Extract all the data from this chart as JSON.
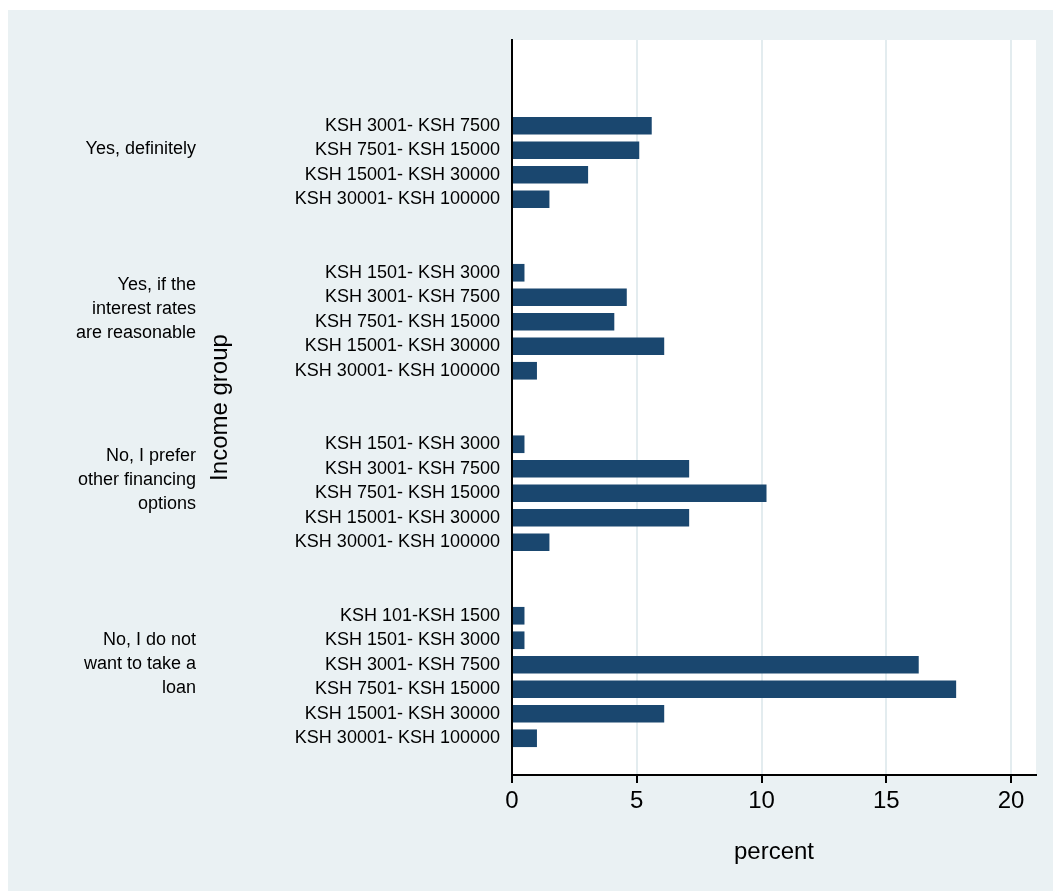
{
  "chart_data": {
    "type": "bar",
    "orientation": "horizontal",
    "xlabel": "percent",
    "ylabel": "Income group",
    "categories": [
      null,
      null,
      null,
      "KSH 3001- KSH 7500",
      "KSH 7501- KSH 15000",
      "KSH 15001- KSH 30000",
      "KSH 30001- KSH 100000",
      null,
      null,
      "KSH 1501- KSH 3000",
      "KSH 3001- KSH 7500",
      "KSH 7501- KSH 15000",
      "KSH 15001- KSH 30000",
      "KSH 30001- KSH 100000",
      null,
      null,
      "KSH 1501- KSH 3000",
      "KSH 3001- KSH 7500",
      "KSH 7501- KSH 15000",
      "KSH 15001- KSH 30000",
      "KSH 30001- KSH 100000",
      null,
      null,
      "KSH 101-KSH 1500",
      "KSH 1501- KSH 3000",
      "KSH 3001- KSH 7500",
      "KSH 7501- KSH 15000",
      "KSH 15001- KSH 30000",
      "KSH 30001- KSH 100000",
      null
    ],
    "values": [
      null,
      null,
      null,
      5.6,
      5.1,
      3.05,
      1.5,
      null,
      null,
      0.5,
      4.6,
      4.1,
      6.1,
      1.0,
      null,
      null,
      0.5,
      7.1,
      10.2,
      7.1,
      1.5,
      null,
      null,
      0.5,
      0.5,
      16.3,
      17.8,
      6.1,
      1.0,
      null
    ],
    "color": "#1a476f",
    "xlim": [
      0,
      21
    ],
    "xticks": [
      0,
      5,
      10,
      15,
      20
    ],
    "grid": "x",
    "annotations": [
      "Yes, definitely",
      "Yes, if the\ninterest rates\nare reasonable",
      "No, I prefer\nother financing\noptions",
      "No, I do not\nwant to take a\nloan"
    ]
  }
}
